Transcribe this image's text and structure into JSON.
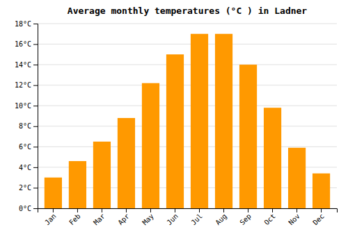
{
  "chart_data": {
    "type": "bar",
    "title": "Average monthly temperatures (°C ) in Ladner",
    "categories": [
      "Jan",
      "Feb",
      "Mar",
      "Apr",
      "May",
      "Jun",
      "Jul",
      "Aug",
      "Sep",
      "Oct",
      "Nov",
      "Dec"
    ],
    "values": [
      3.0,
      4.6,
      6.5,
      8.8,
      12.2,
      15.0,
      17.0,
      17.0,
      14.0,
      9.8,
      5.9,
      3.4
    ],
    "color": "#FF9900",
    "ylim": [
      0,
      18
    ],
    "yticks": [
      {
        "value": 0,
        "label": "0°C"
      },
      {
        "value": 2,
        "label": "2°C"
      },
      {
        "value": 4,
        "label": "4°C"
      },
      {
        "value": 6,
        "label": "6°C"
      },
      {
        "value": 8,
        "label": "8°C"
      },
      {
        "value": 10,
        "label": "10°C"
      },
      {
        "value": 12,
        "label": "12°C"
      },
      {
        "value": 14,
        "label": "14°C"
      },
      {
        "value": 16,
        "label": "16°C"
      },
      {
        "value": 18,
        "label": "18°C"
      }
    ],
    "grid": true
  }
}
